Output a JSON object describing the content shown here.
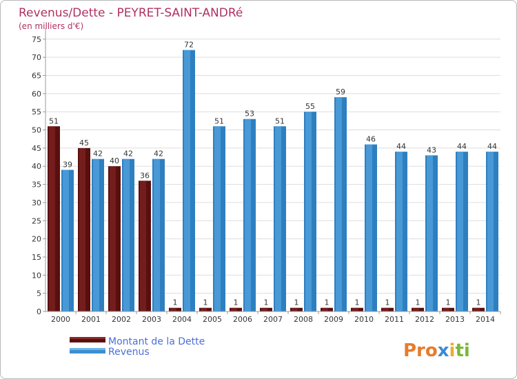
{
  "chart_data": {
    "type": "bar",
    "title": "Revenus/Dette - PEYRET-SAINT-ANDRé",
    "subtitle": "(en milliers d'€)",
    "categories": [
      "2000",
      "2001",
      "2002",
      "2003",
      "2004",
      "2005",
      "2006",
      "2007",
      "2008",
      "2009",
      "2010",
      "2011",
      "2012",
      "2013",
      "2014"
    ],
    "series": [
      {
        "name": "Montant de la Dette",
        "color": "#7a1a1a",
        "values": [
          51,
          45,
          40,
          36,
          1,
          1,
          1,
          1,
          1,
          1,
          1,
          1,
          1,
          1,
          1
        ]
      },
      {
        "name": "Revenus",
        "color": "#4a9fdc",
        "values": [
          39,
          42,
          42,
          42,
          72,
          51,
          53,
          51,
          55,
          59,
          46,
          44,
          43,
          44,
          44
        ]
      }
    ],
    "yticks": [
      0,
      5,
      10,
      15,
      20,
      25,
      30,
      35,
      40,
      45,
      50,
      55,
      60,
      65,
      70,
      75
    ],
    "ylim": [
      0,
      78
    ],
    "grid": true,
    "legend_position": "bottom-left"
  },
  "logo": {
    "text": "Proxiti"
  },
  "colors": {
    "title": "#b03060",
    "legend_text": "#4a6fd8",
    "grid": "#dddddd"
  }
}
